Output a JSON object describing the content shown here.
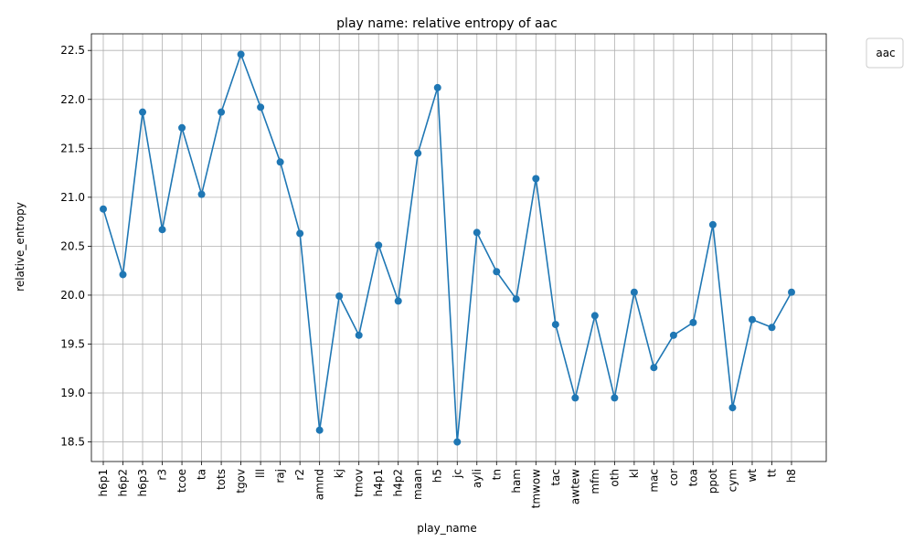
{
  "chart_data": {
    "type": "line",
    "title": "play name: relative entropy of aac",
    "xlabel": "play_name",
    "ylabel": "relative_entropy",
    "legend": {
      "title": "aac",
      "placement": "upper-right-outside"
    },
    "grid": true,
    "ylim": [
      18.3,
      22.67
    ],
    "yticks": [
      "18.5",
      "19.0",
      "19.5",
      "20.0",
      "20.5",
      "21.0",
      "21.5",
      "22.0",
      "22.5"
    ],
    "categories": [
      "h6p1",
      "h6p2",
      "h6p3",
      "r3",
      "tcoe",
      "ta",
      "tots",
      "tgov",
      "lll",
      "raj",
      "r2",
      "amnd",
      "kj",
      "tmov",
      "h4p1",
      "h4p2",
      "maan",
      "h5",
      "jc",
      "ayli",
      "tn",
      "ham",
      "tmwow",
      "tac",
      "awtew",
      "mfm",
      "oth",
      "kl",
      "mac",
      "cor",
      "toa",
      "ppot",
      "cym",
      "wt",
      "tt",
      "h8"
    ],
    "series": [
      {
        "color": "#1f77b4",
        "values": [
          20.88,
          20.21,
          21.87,
          20.67,
          21.71,
          21.03,
          21.87,
          22.46,
          21.92,
          21.36,
          20.63,
          18.62,
          19.99,
          19.59,
          20.51,
          19.94,
          21.45,
          22.12,
          18.5,
          20.64,
          20.24,
          19.96,
          21.19,
          19.7,
          18.95,
          19.79,
          18.95,
          20.03,
          19.26,
          19.59,
          19.72,
          20.72,
          18.85,
          19.75,
          19.67,
          20.03
        ]
      }
    ]
  }
}
